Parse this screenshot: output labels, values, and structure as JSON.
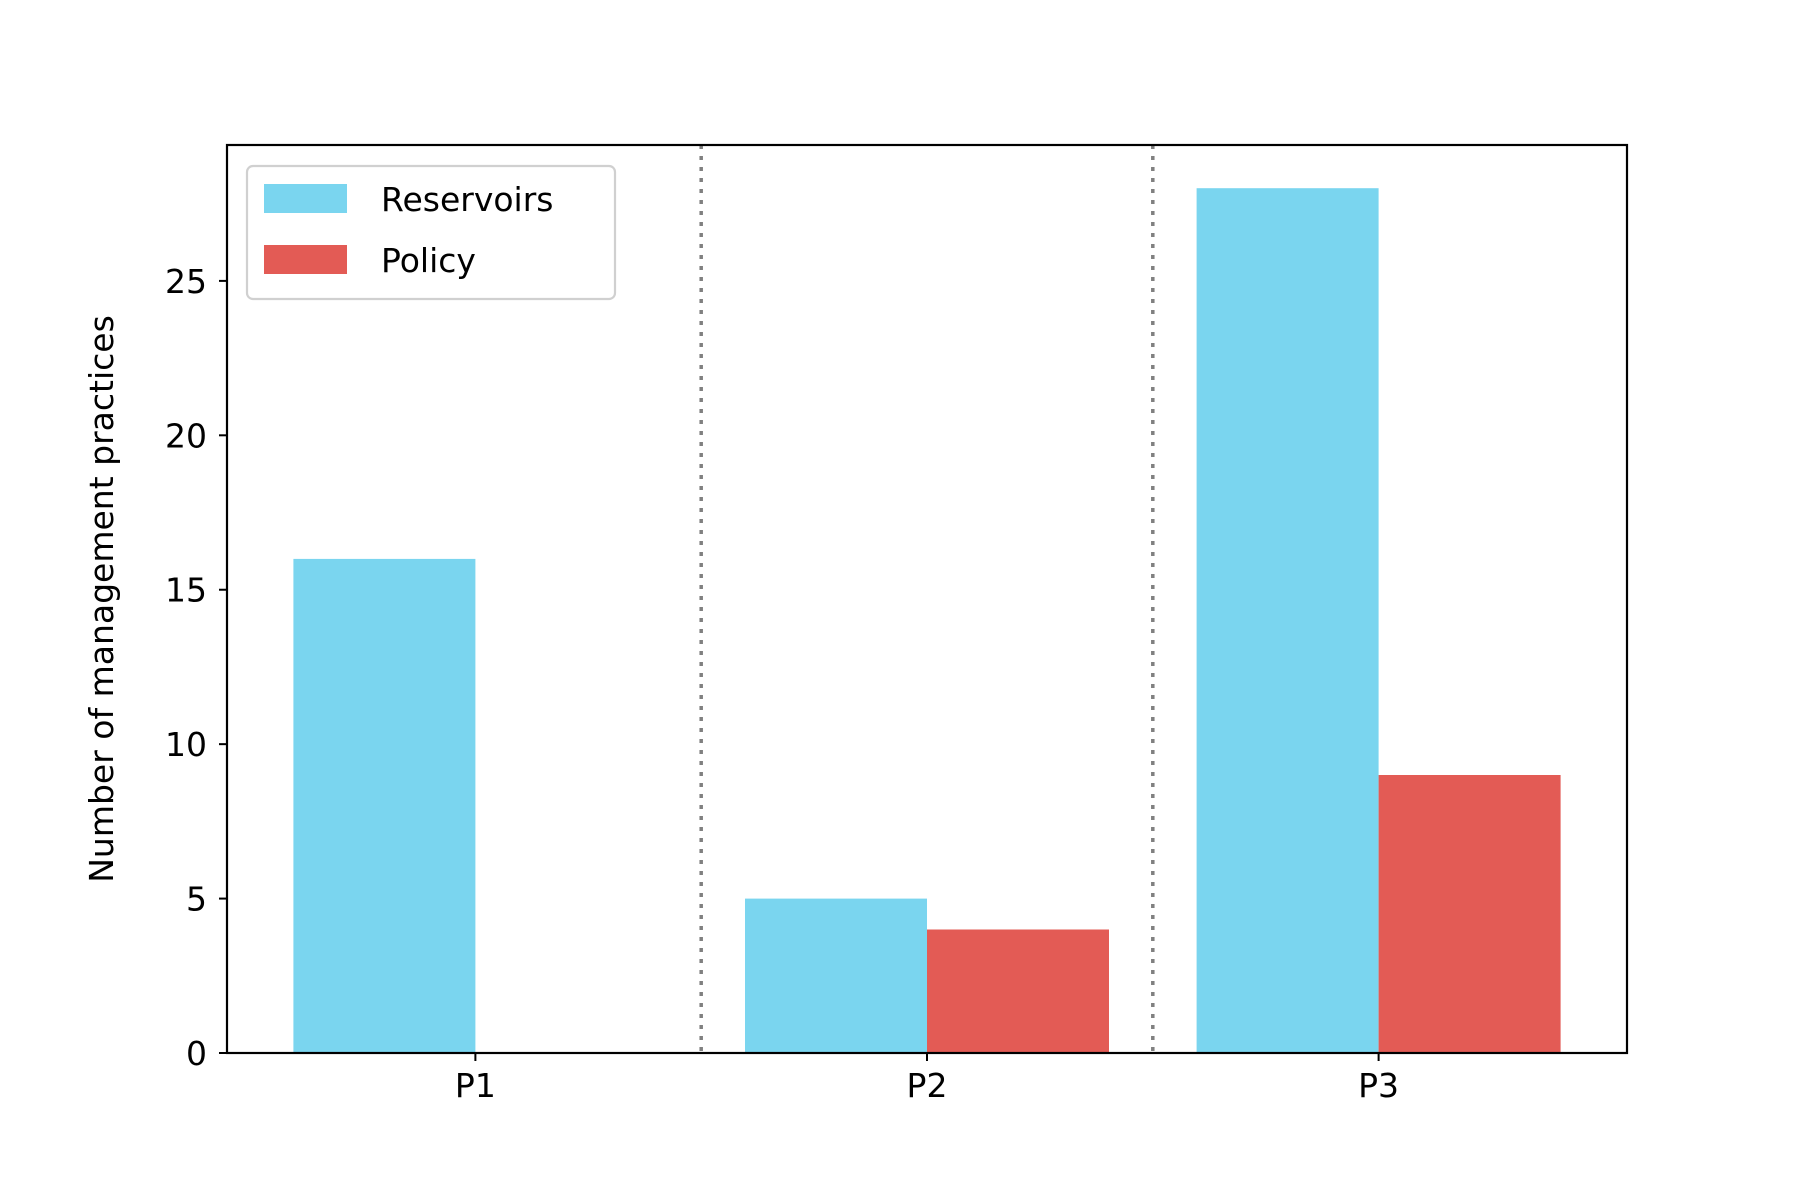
{
  "chart_data": {
    "type": "bar",
    "categories": [
      "P1",
      "P2",
      "P3"
    ],
    "series": [
      {
        "name": "Reservoirs",
        "values": [
          16,
          5,
          28
        ],
        "color": "#7AD5EF"
      },
      {
        "name": "Policy",
        "values": [
          0,
          4,
          9
        ],
        "color": "#E35B55"
      }
    ],
    "title": "",
    "xlabel": "",
    "ylabel": "Number of management practices",
    "ylim": [
      0,
      29.4
    ],
    "yticks": [
      0,
      5,
      10,
      15,
      20,
      25
    ],
    "grid": false,
    "legend_position": "top-left",
    "category_separators": "dotted-vertical"
  }
}
